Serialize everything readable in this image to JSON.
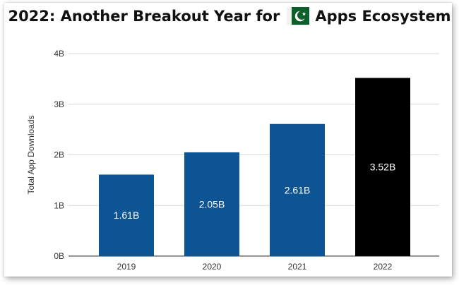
{
  "title": {
    "prefix": "2022: Another Breakout Year for",
    "suffix": "Apps Ecosystem",
    "flag_icon": "pakistan-flag-icon",
    "flag_green": "#0b5f2a"
  },
  "chart_data": {
    "type": "bar",
    "categories": [
      "2019",
      "2020",
      "2021",
      "2022"
    ],
    "values": [
      1.61,
      2.05,
      2.61,
      3.52
    ],
    "value_labels": [
      "1.61B",
      "2.05B",
      "2.61B",
      "3.52B"
    ],
    "bar_colors": [
      "#0d5494",
      "#0d5494",
      "#0d5494",
      "#000000"
    ],
    "ylabel": "Total App Downloads",
    "ylim": [
      0,
      4
    ],
    "yticks": [
      0,
      1,
      2,
      3,
      4
    ],
    "ytick_labels": [
      "0B",
      "1B",
      "2B",
      "3B",
      "4B"
    ],
    "grid": true
  }
}
